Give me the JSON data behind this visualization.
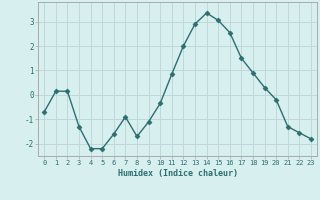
{
  "x": [
    0,
    1,
    2,
    3,
    4,
    5,
    6,
    7,
    8,
    9,
    10,
    11,
    12,
    13,
    14,
    15,
    16,
    17,
    18,
    19,
    20,
    21,
    22,
    23
  ],
  "y": [
    -0.7,
    0.15,
    0.15,
    -1.3,
    -2.2,
    -2.2,
    -1.6,
    -0.9,
    -1.7,
    -1.1,
    -0.35,
    0.85,
    2.0,
    2.9,
    3.35,
    3.05,
    2.55,
    1.5,
    0.9,
    0.3,
    -0.2,
    -1.3,
    -1.55,
    -1.8
  ],
  "line_color": "#2d6e6e",
  "marker": "D",
  "markersize": 2.5,
  "bg_color": "#d8eff0",
  "grid_color": "#c0d8d8",
  "xlabel": "Humidex (Indice chaleur)",
  "ylim": [
    -2.5,
    3.8
  ],
  "xlim": [
    -0.5,
    23.5
  ],
  "yticks": [
    -2,
    -1,
    0,
    1,
    2,
    3
  ],
  "xticks": [
    0,
    1,
    2,
    3,
    4,
    5,
    6,
    7,
    8,
    9,
    10,
    11,
    12,
    13,
    14,
    15,
    16,
    17,
    18,
    19,
    20,
    21,
    22,
    23
  ],
  "tick_fontsize": 5.0,
  "xlabel_fontsize": 6.0,
  "linewidth": 1.0
}
